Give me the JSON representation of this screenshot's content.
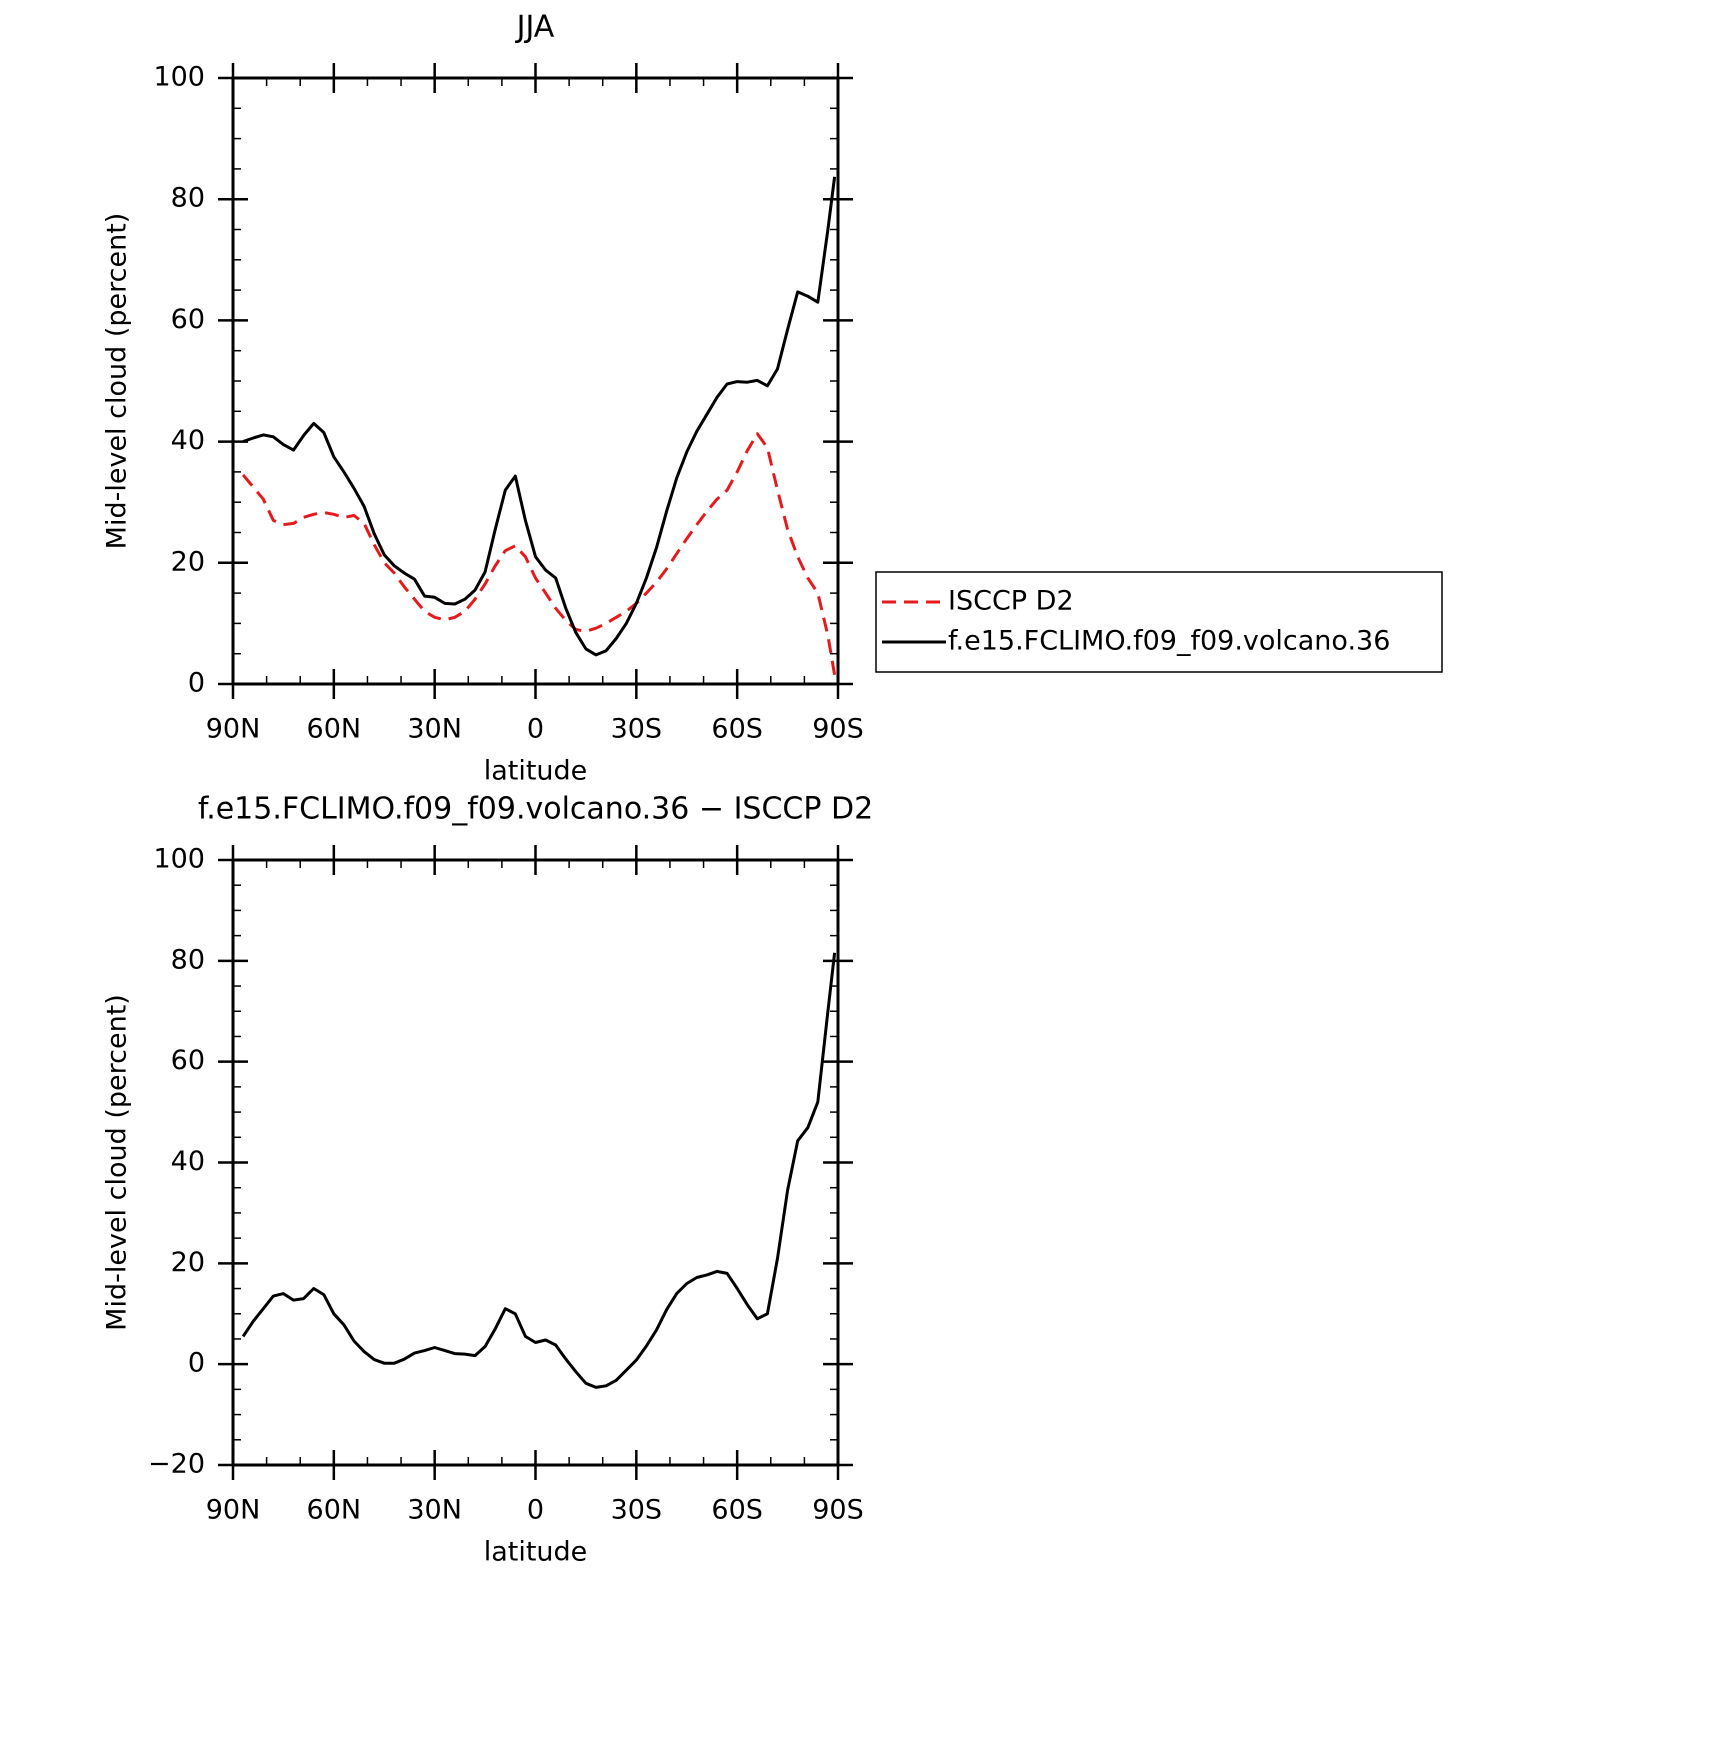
{
  "chart_data": [
    {
      "type": "line",
      "title": "JJA",
      "x_label": "latitude",
      "y_label": "Mid-level cloud (percent)",
      "x": [
        87,
        84,
        81,
        78,
        75,
        72,
        69,
        66,
        63,
        60,
        57,
        54,
        51,
        48,
        45,
        42,
        39,
        36,
        33,
        30,
        27,
        24,
        21,
        18,
        15,
        12,
        9,
        6,
        3,
        0,
        -3,
        -6,
        -9,
        -12,
        -15,
        -18,
        -21,
        -24,
        -27,
        -30,
        -33,
        -36,
        -39,
        -42,
        -45,
        -48,
        -51,
        -54,
        -57,
        -60,
        -63,
        -66,
        -69,
        -72,
        -75,
        -78,
        -81,
        -84,
        -87,
        -89
      ],
      "series": [
        {
          "name": "ISCCP D2",
          "color": "#e41a1c",
          "dashed": true,
          "values": [
            34.5,
            32.5,
            30.5,
            27,
            26.3,
            26.5,
            27.5,
            28,
            28.3,
            28,
            27.5,
            27.8,
            26.5,
            23,
            20,
            18.3,
            16,
            14,
            12,
            11,
            10.6,
            11,
            12,
            14,
            16.5,
            19.5,
            22,
            22.8,
            21,
            17.5,
            15,
            12.5,
            10.5,
            9,
            8.7,
            9.2,
            10,
            11,
            12,
            13.3,
            15,
            16.8,
            19,
            21.5,
            24,
            26.3,
            28.5,
            30.5,
            32,
            35,
            38.5,
            41.3,
            39,
            32,
            25.5,
            21,
            17.5,
            15,
            8,
            1.5
          ]
        },
        {
          "name": "f.e15.FCLIMO.f09_f09.volcano.36",
          "color": "#000000",
          "dashed": false,
          "values": [
            40,
            40.6,
            41.1,
            40.8,
            39.5,
            38.6,
            41,
            43,
            41.5,
            37.5,
            35,
            32.3,
            29.3,
            24.8,
            21.3,
            19.5,
            18.3,
            17.3,
            14.5,
            14.3,
            13.3,
            13.2,
            14,
            15.5,
            18.5,
            25.5,
            32,
            34.3,
            27,
            21,
            18.8,
            17.5,
            12.5,
            8.5,
            5.8,
            4.8,
            5.5,
            7.5,
            10,
            13.3,
            17.5,
            22.5,
            28.5,
            34,
            38.3,
            41.7,
            44.5,
            47.3,
            49.5,
            49.9,
            49.8,
            50.1,
            49.2,
            52,
            58.5,
            64.7,
            64,
            63,
            75,
            83.7
          ]
        }
      ],
      "xlim": [
        90,
        -90
      ],
      "xticks": [
        {
          "value": 90,
          "label": "90N"
        },
        {
          "value": 60,
          "label": "60N"
        },
        {
          "value": 30,
          "label": "30N"
        },
        0,
        {
          "value": -30,
          "label": "30S"
        },
        {
          "value": -60,
          "label": "60S"
        },
        {
          "value": -90,
          "label": "90S"
        }
      ],
      "x_minor_ticks": [
        80,
        70,
        50,
        40,
        20,
        10,
        -10,
        -20,
        -40,
        -50,
        -70,
        -80
      ],
      "ylim": [
        0,
        100
      ],
      "yticks": [
        0,
        20,
        40,
        60,
        80,
        100
      ],
      "y_minor_ticks": [
        5,
        10,
        15,
        25,
        30,
        35,
        45,
        50,
        55,
        65,
        70,
        75,
        85,
        90,
        95
      ],
      "legend": "right"
    },
    {
      "type": "line",
      "title": "f.e15.FCLIMO.f09_f09.volcano.36 − ISCCP D2",
      "x_label": "latitude",
      "y_label": "Mid-level cloud (percent)",
      "x": [
        87,
        84,
        81,
        78,
        75,
        72,
        69,
        66,
        63,
        60,
        57,
        54,
        51,
        48,
        45,
        42,
        39,
        36,
        33,
        30,
        27,
        24,
        21,
        18,
        15,
        12,
        9,
        6,
        3,
        0,
        -3,
        -6,
        -9,
        -12,
        -15,
        -18,
        -21,
        -24,
        -27,
        -30,
        -33,
        -36,
        -39,
        -42,
        -45,
        -48,
        -51,
        -54,
        -57,
        -60,
        -63,
        -66,
        -69,
        -72,
        -75,
        -78,
        -81,
        -84,
        -87,
        -89
      ],
      "series": [
        {
          "color": "#000000",
          "dashed": false,
          "values": [
            5.5,
            8.5,
            11,
            13.5,
            14,
            12.7,
            13,
            15,
            13.8,
            10,
            7.8,
            4.6,
            2.5,
            0.9,
            0.2,
            0.2,
            1,
            2.2,
            2.7,
            3.3,
            2.7,
            2.1,
            2,
            1.7,
            3.5,
            7,
            11,
            10,
            5.5,
            4.3,
            4.8,
            3.8,
            1,
            -1.5,
            -3.8,
            -4.6,
            -4.3,
            -3.2,
            -1.2,
            0.8,
            3.6,
            6.8,
            10.8,
            14,
            16,
            17.2,
            17.7,
            18.4,
            18,
            15,
            11.8,
            9,
            10,
            21,
            34.5,
            44.3,
            46.9,
            52,
            70,
            81.6
          ]
        }
      ],
      "xlim": [
        90,
        -90
      ],
      "xticks": [
        {
          "value": 90,
          "label": "90N"
        },
        {
          "value": 60,
          "label": "60N"
        },
        {
          "value": 30,
          "label": "30N"
        },
        0,
        {
          "value": -30,
          "label": "30S"
        },
        {
          "value": -60,
          "label": "60S"
        },
        {
          "value": -90,
          "label": "90S"
        }
      ],
      "x_minor_ticks": [
        80,
        70,
        50,
        40,
        20,
        10,
        -10,
        -20,
        -40,
        -50,
        -70,
        -80
      ],
      "ylim": [
        -20,
        100
      ],
      "yticks": [
        {
          "value": -20,
          "label": "−20"
        },
        0,
        20,
        40,
        60,
        80,
        100
      ],
      "y_minor_ticks": [
        -15,
        -10,
        -5,
        5,
        10,
        15,
        25,
        30,
        35,
        45,
        50,
        55,
        65,
        70,
        75,
        85,
        90,
        95
      ]
    }
  ]
}
